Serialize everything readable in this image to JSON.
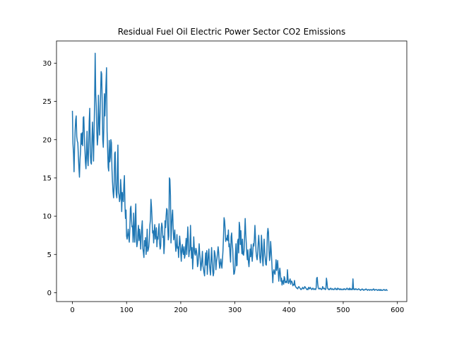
{
  "chart_data": {
    "type": "line",
    "title": "Residual Fuel Oil Electric Power Sector CO2 Emissions",
    "xlabel": "",
    "ylabel": "",
    "xlim": [
      -29.4,
      617.4
    ],
    "ylim": [
      -1.16,
      32.9
    ],
    "xticks": [
      0,
      100,
      200,
      300,
      400,
      500,
      600
    ],
    "yticks": [
      0,
      5,
      10,
      15,
      20,
      25,
      30
    ],
    "grid": false,
    "legend": "none",
    "series": [
      {
        "color": "#1f77b4",
        "x_start": 0,
        "x_step": 1,
        "values": [
          23.7,
          19.5,
          18.2,
          15.8,
          19.0,
          21.2,
          22.6,
          23.1,
          20.4,
          19.8,
          19.6,
          17.8,
          16.3,
          15.1,
          17.4,
          18.5,
          20.8,
          19.4,
          20.9,
          19.2,
          22.9,
          23.0,
          20.6,
          18.9,
          17.1,
          16.2,
          18.4,
          21.1,
          17.5,
          16.6,
          19.1,
          22.4,
          24.1,
          18.3,
          17.0,
          16.8,
          19.7,
          22.3,
          20.2,
          17.2,
          21.0,
          25.2,
          31.3,
          26.0,
          24.4,
          21.1,
          19.3,
          20.3,
          25.8,
          22.7,
          20.6,
          23.2,
          25.9,
          28.9,
          28.6,
          24.9,
          20.0,
          19.0,
          21.5,
          26.0,
          23.1,
          25.3,
          27.4,
          29.4,
          21.1,
          18.7,
          16.4,
          15.9,
          19.9,
          17.1,
          17.7,
          20.0,
          19.6,
          16.2,
          14.5,
          13.2,
          12.4,
          13.8,
          18.2,
          18.4,
          14.2,
          12.8,
          12.4,
          15.8,
          19.3,
          13.1,
          12.8,
          11.9,
          12.3,
          14.8,
          13.5,
          10.6,
          13.1,
          12.5,
          11.9,
          14.1,
          15.3,
          11.4,
          9.7,
          10.8,
          7.4,
          7.0,
          7.6,
          8.3,
          7.3,
          6.6,
          8.3,
          11.0,
          11.3,
          9.6,
          8.6,
          8.7,
          6.6,
          10.4,
          7.8,
          6.6,
          9.8,
          11.6,
          7.1,
          6.0,
          6.5,
          7.9,
          8.8,
          6.8,
          8.3,
          7.4,
          5.7,
          7.3,
          8.5,
          9.4,
          5.8,
          5.3,
          4.6,
          6.8,
          6.1,
          7.2,
          5.0,
          6.0,
          8.3,
          5.4,
          5.6,
          6.0,
          7.0,
          8.8,
          9.5,
          12.2,
          11.2,
          9.7,
          7.8,
          8.1,
          6.5,
          8.0,
          8.9,
          7.0,
          7.7,
          8.5,
          6.0,
          7.3,
          7.0,
          8.2,
          9.0,
          6.5,
          5.7,
          6.1,
          8.4,
          9.1,
          8.6,
          7.2,
          7.4,
          5.1,
          6.3,
          9.4,
          8.5,
          10.0,
          11.0,
          10.8,
          8.5,
          6.9,
          7.4,
          15.0,
          14.8,
          12.7,
          6.5,
          8.5,
          10.1,
          10.8,
          8.5,
          6.9,
          7.4,
          8.2,
          6.4,
          5.4,
          6.1,
          7.6,
          5.8,
          6.0,
          4.6,
          6.2,
          7.4,
          6.5,
          5.2,
          4.1,
          5.8,
          6.3,
          5.3,
          5.0,
          6.0,
          4.5,
          4.9,
          6.1,
          7.1,
          5.0,
          6.6,
          8.6,
          7.0,
          4.7,
          5.4,
          5.6,
          8.8,
          6.1,
          4.5,
          5.9,
          3.1,
          4.6,
          7.3,
          5.9,
          5.1,
          4.9,
          5.8,
          5.5,
          4.8,
          3.4,
          3.8,
          5.0,
          6.4,
          5.1,
          4.4,
          2.9,
          3.5,
          4.3,
          5.4,
          3.5,
          3.1,
          2.6,
          2.2,
          4.1,
          5.2,
          3.6,
          5.5,
          2.4,
          3.8,
          5.1,
          5.7,
          3.7,
          2.9,
          2.3,
          4.4,
          5.9,
          4.2,
          2.9,
          2.2,
          2.6,
          5.5,
          5.2,
          4.6,
          3.0,
          4.1,
          4.5,
          5.2,
          6.0,
          5.3,
          3.9,
          3.2,
          3.9,
          4.4,
          3.6,
          3.2,
          4.3,
          5.5,
          7.4,
          9.8,
          9.4,
          8.3,
          6.7,
          7.1,
          6.9,
          7.5,
          6.8,
          8.2,
          6.0,
          6.4,
          5.0,
          4.0,
          7.3,
          7.8,
          6.4,
          5.7,
          3.8,
          2.4,
          2.5,
          3.0,
          5.0,
          6.4,
          3.5,
          3.6,
          6.7,
          7.0,
          5.2,
          9.2,
          8.6,
          6.3,
          8.1,
          6.3,
          5.1,
          7.0,
          5.0,
          4.9,
          5.5,
          7.7,
          9.7,
          7.7,
          6.5,
          5.1,
          4.3,
          5.6,
          4.0,
          3.4,
          4.5,
          5.7,
          4.7,
          6.3,
          5.1,
          4.1,
          5.3,
          6.4,
          6.1,
          7.1,
          8.8,
          7.2,
          5.4,
          4.7,
          4.3,
          5.0,
          6.5,
          7.5,
          6.3,
          4.6,
          3.9,
          4.8,
          7.5,
          6.4,
          4.3,
          3.5,
          5.6,
          7.0,
          5.3,
          4.6,
          3.7,
          3.6,
          5.0,
          7.7,
          8.4,
          7.9,
          5.5,
          4.2,
          4.9,
          6.7,
          5.6,
          4.2,
          2.6,
          1.3,
          2.7,
          3.0,
          2.6,
          2.4,
          3.1,
          4.3,
          2.9,
          3.4,
          4.2,
          2.8,
          1.5,
          2.6,
          3.2,
          2.4,
          1.5,
          1.9,
          1.0,
          1.4,
          1.6,
          1.1,
          2.1,
          1.9,
          1.3,
          1.4,
          1.5,
          1.3,
          3.0,
          1.9,
          1.2,
          1.4,
          1.6,
          1.8,
          1.1,
          1.5,
          1.5,
          1.3,
          0.9,
          1.1,
          1.0,
          1.6,
          1.0,
          0.8,
          0.7,
          0.6,
          0.6,
          0.5,
          0.7,
          0.8,
          0.7,
          0.6,
          0.5,
          0.4,
          0.5,
          0.5,
          0.7,
          0.6,
          0.5,
          0.6,
          0.8,
          0.7,
          0.6,
          0.5,
          0.4,
          0.5,
          0.4,
          0.7,
          0.6,
          0.5,
          0.7,
          0.6,
          0.5,
          0.4,
          0.5,
          0.6,
          0.5,
          0.4,
          0.5,
          0.5,
          0.4,
          0.6,
          1.9,
          2.0,
          1.1,
          0.6,
          0.5,
          0.5,
          0.6,
          0.5,
          0.5,
          0.4,
          0.5,
          0.8,
          0.6,
          0.5,
          0.6,
          0.5,
          0.4,
          0.5,
          1.9,
          1.4,
          0.6,
          0.5,
          0.4,
          0.5,
          0.4,
          0.5,
          0.6,
          0.5,
          0.4,
          0.5,
          0.5,
          0.4,
          0.4,
          0.5,
          0.6,
          0.5,
          0.4,
          0.5,
          0.4,
          0.6,
          0.5,
          0.5,
          0.4,
          0.5,
          0.4,
          0.5,
          0.4,
          0.4,
          0.4,
          0.5,
          0.4,
          0.5,
          0.5,
          0.4,
          0.4,
          0.5,
          0.6,
          0.5,
          0.4,
          0.5,
          0.4,
          0.6,
          0.4,
          0.5,
          0.4,
          0.5,
          0.4,
          1.8,
          0.5,
          0.4,
          0.5,
          0.4,
          0.5,
          0.5,
          0.4,
          0.4,
          0.4,
          0.5,
          0.5,
          0.4,
          0.4,
          0.3,
          0.4,
          0.4,
          0.5,
          0.4,
          0.4,
          0.3,
          0.4,
          0.4,
          0.4,
          0.5,
          0.4,
          0.4,
          0.3,
          0.4,
          0.4,
          0.4,
          0.3,
          0.4,
          0.4,
          0.4,
          0.3,
          0.4,
          0.4,
          0.5,
          0.4,
          0.3,
          0.4,
          0.4,
          0.4,
          0.4,
          0.3,
          0.3,
          0.4,
          0.4,
          0.3,
          0.4,
          0.3,
          0.4,
          0.3,
          0.3,
          0.3,
          0.4,
          0.4,
          0.4,
          0.3,
          0.3,
          0.4,
          0.4,
          0.3
        ]
      }
    ]
  }
}
